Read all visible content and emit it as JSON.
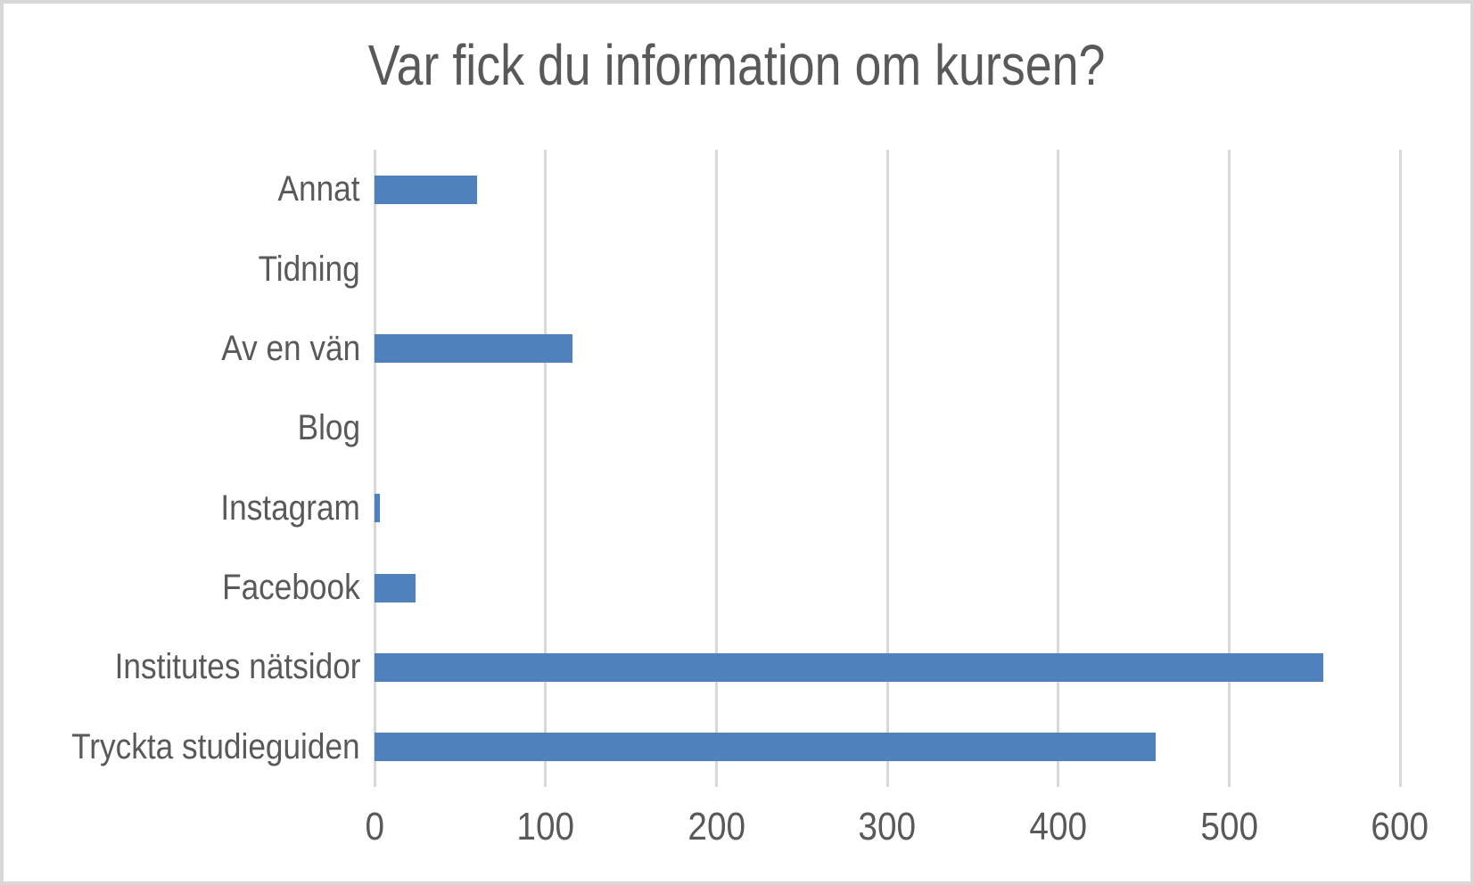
{
  "chart_data": {
    "type": "bar",
    "orientation": "horizontal",
    "title": "Var fick du information om kursen?",
    "categories": [
      "Annat",
      "Tidning",
      "Av en vän",
      "Blog",
      "Instagram",
      "Facebook",
      "Institutes nätsidor",
      "Tryckta studieguiden"
    ],
    "values": [
      60,
      0,
      116,
      0,
      3,
      24,
      555,
      457
    ],
    "xlabel": "",
    "ylabel": "",
    "xlim": [
      0,
      600
    ],
    "x_ticks": [
      0,
      100,
      200,
      300,
      400,
      500,
      600
    ],
    "grid": "vertical",
    "legend": "none",
    "colors": {
      "bar": "#4F81BD",
      "text": "#595959",
      "gridline": "#D9D9D9",
      "background": "#FFFFFF",
      "frame_border": "#D8D8D8"
    }
  }
}
